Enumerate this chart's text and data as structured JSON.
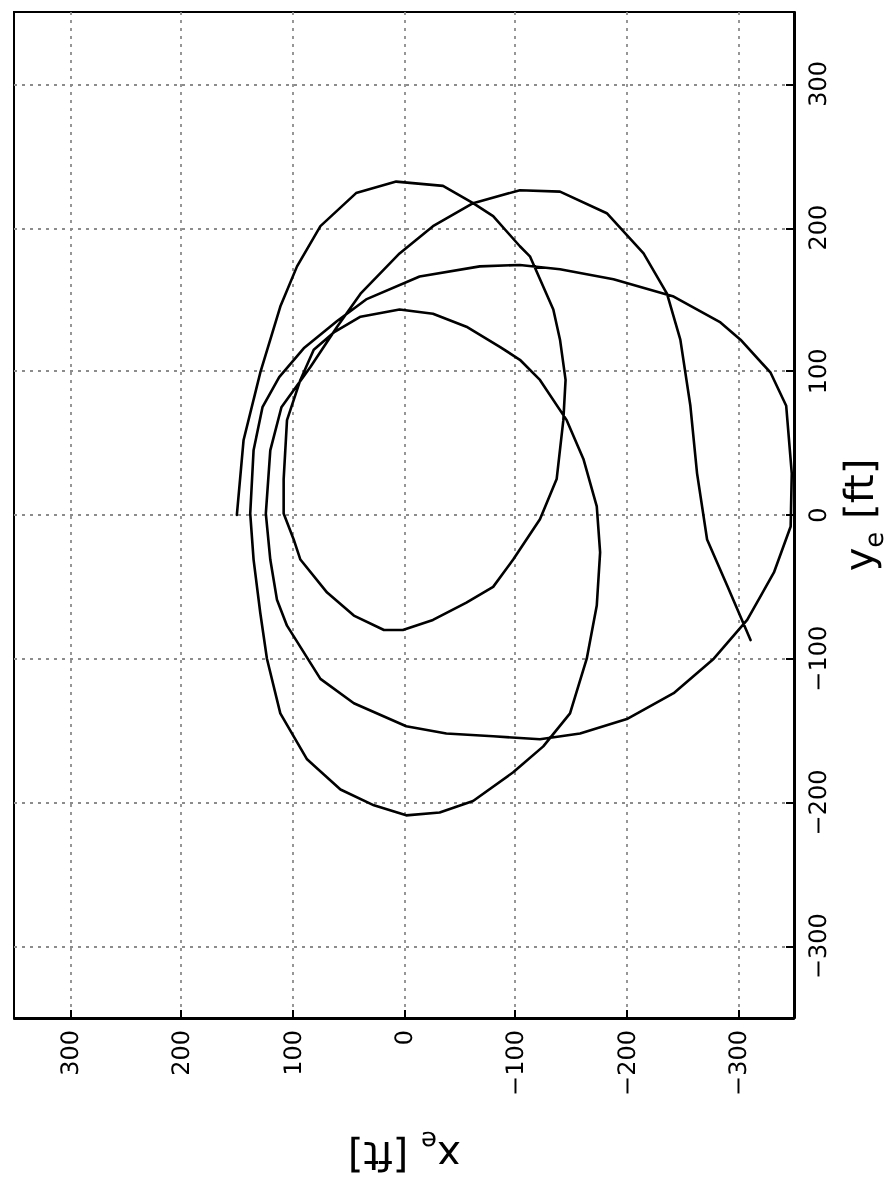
{
  "chart_data": {
    "type": "line",
    "xlabel": "x$_{e}$ [ft]",
    "ylabel": "y$_{e}$ [ft]",
    "xlim": [
      350,
      -350
    ],
    "ylim": [
      -350,
      350
    ],
    "xticks": [
      300,
      200,
      100,
      0,
      {
        "value": -100,
        "label": "−100"
      },
      {
        "value": -200,
        "label": "−200"
      },
      {
        "value": -300,
        "label": "−300"
      }
    ],
    "yticks": [
      {
        "value": -300,
        "label": "−300"
      },
      {
        "value": -200,
        "label": "−200"
      },
      {
        "value": -100,
        "label": "−100"
      },
      0,
      100,
      200,
      300
    ],
    "grid": true,
    "marker": "none",
    "series": [
      {
        "color": "#000000",
        "x": [
          150,
          144,
          129,
          111,
          96,
          75,
          43,
          7,
          -35,
          -62,
          -80,
          -104,
          -113,
          -134,
          -140,
          -145,
          -143,
          -137,
          -122,
          -98,
          -80,
          -56,
          -26,
          1,
          18,
          45,
          69,
          93,
          99,
          108,
          108,
          105,
          93,
          81,
          63,
          39,
          4,
          -26,
          -56,
          -86,
          -104,
          -122,
          -146,
          -161,
          -173,
          -176,
          -173,
          -164,
          -149,
          -125,
          -98,
          -62,
          -32,
          -2,
          27,
          57,
          87,
          111,
          123,
          129,
          135,
          138,
          135,
          127,
          112,
          90,
          60,
          34,
          -14,
          -68,
          -104,
          -140,
          -188,
          -242,
          -284,
          -302,
          -329,
          -343,
          -348,
          -347,
          -332,
          -308,
          -278,
          -242,
          -200,
          -158,
          -122,
          -80,
          -38,
          -2,
          45,
          75,
          105,
          114,
          120,
          124,
          120,
          110,
          84,
          60,
          39,
          4,
          -26,
          -62,
          -104,
          -140,
          -182,
          -215,
          -236,
          -248,
          -257,
          -263,
          -272,
          -290,
          -311
        ],
        "values": [
          0,
          52,
          99,
          145,
          173,
          201,
          224,
          232,
          229,
          217,
          208,
          187,
          180,
          143,
          122,
          94,
          66,
          25,
          -3,
          -31,
          -50,
          -61,
          -73,
          -80,
          -80,
          -70,
          -54,
          -31,
          -17,
          1,
          25,
          66,
          94,
          115,
          127,
          138,
          143,
          140,
          131,
          117,
          108,
          94,
          66,
          39,
          6,
          -26,
          -63,
          -100,
          -138,
          -161,
          -179,
          -199,
          -207,
          -209,
          -202,
          -191,
          -170,
          -138,
          -100,
          -68,
          -31,
          1,
          45,
          75,
          96,
          116,
          135,
          150,
          166,
          173,
          174,
          171,
          164,
          152,
          134,
          122,
          99,
          76,
          29,
          -8,
          -40,
          -73,
          -100,
          -124,
          -142,
          -152,
          -156,
          -154,
          -152,
          -147,
          -131,
          -114,
          -77,
          -59,
          -31,
          1,
          45,
          75,
          103,
          131,
          154,
          182,
          201,
          217,
          226,
          225,
          210,
          182,
          154,
          122,
          76,
          29,
          -17,
          -49,
          -87
        ]
      }
    ]
  }
}
